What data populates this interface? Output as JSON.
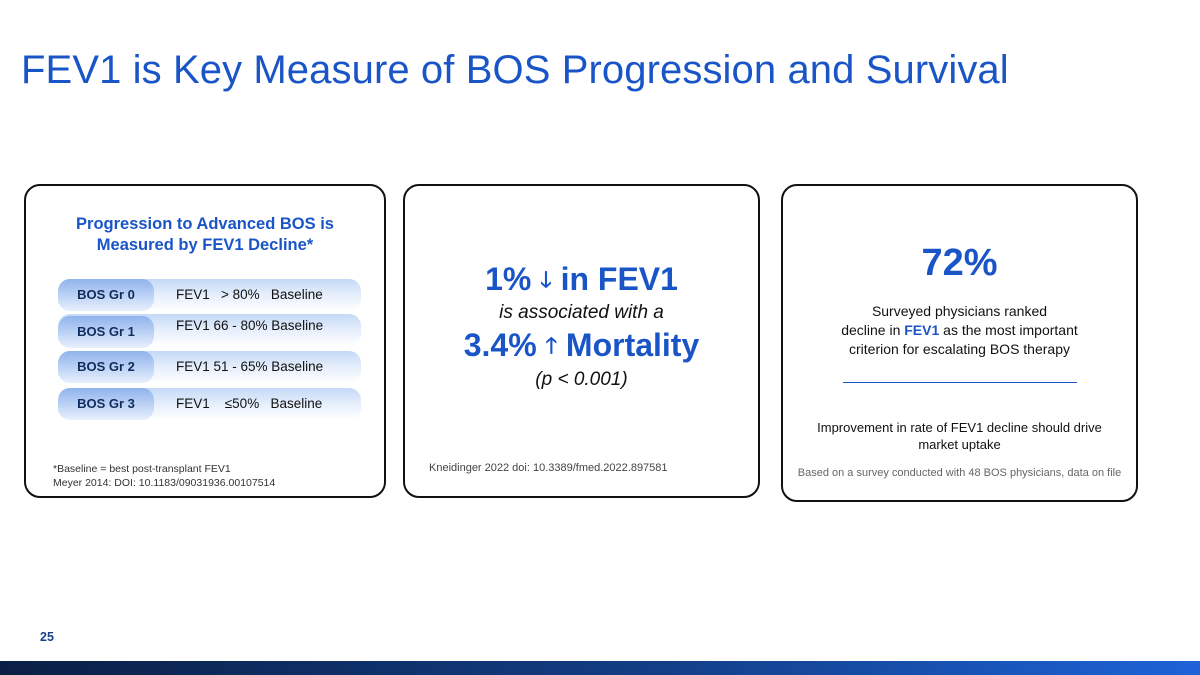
{
  "title": "FEV1 is Key Measure of BOS Progression and Survival",
  "left_card": {
    "heading_line1": "Progression to Advanced BOS is",
    "heading_line2": "Measured by FEV1 Decline*",
    "grades": [
      {
        "label": "BOS Gr 0",
        "desc": "FEV1   > 80%   Baseline"
      },
      {
        "label": "BOS Gr 1",
        "desc": "FEV1 66 - 80% Baseline"
      },
      {
        "label": "BOS Gr 2",
        "desc": "FEV1 51 - 65% Baseline"
      },
      {
        "label": "BOS Gr 3",
        "desc": "FEV1    ≤50%   Baseline"
      }
    ],
    "note_line1": "*Baseline = best post-transplant FEV1",
    "note_line2": "Meyer 2014: DOI: 10.1183/09031936.00107514"
  },
  "mid_card": {
    "stat1_value": "1%",
    "stat1_arrow": "🡓",
    "stat1_text": "in FEV1",
    "assoc_text": "is associated with a",
    "stat2_value": "3.4%",
    "stat2_arrow": "🡑",
    "stat2_text": "Mortality",
    "pvalue": "(p < 0.001)",
    "citation": "Kneidinger 2022 doi: 10.3389/fmed.2022.897581"
  },
  "right_card": {
    "big_pct": "72%",
    "line1": "Surveyed physicians ranked",
    "line2_pre": "decline in ",
    "line2_hl": "FEV1",
    "line2_post": " as the most important",
    "line3": "criterion for escalating BOS therapy",
    "improvement_text": "Improvement in rate of FEV1 decline should drive market uptake",
    "survey_note": "Based on a survey conducted with 48 BOS physicians, data on file"
  },
  "page_number": "25",
  "colors": {
    "accent": "#1a55c8",
    "footer_dark": "#0a1f44",
    "footer_light": "#1d63d8"
  }
}
